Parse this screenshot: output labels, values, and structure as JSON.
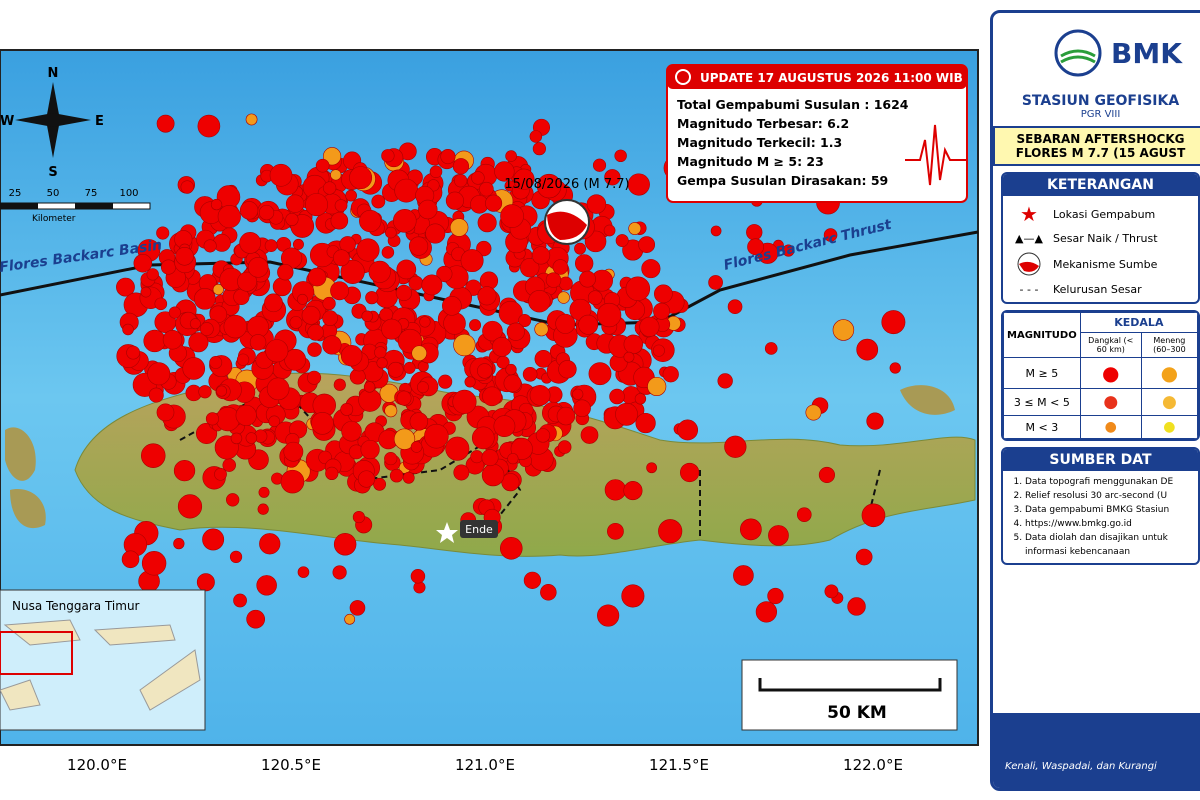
{
  "map": {
    "compass": {
      "n": "N",
      "s": "S",
      "w": "W",
      "e": "E"
    },
    "scale_km": [
      "25",
      "50",
      "75",
      "100"
    ],
    "scale_unit": "Kilometer",
    "basin": "Flores Backarc Basin",
    "thrust": "Flores Backarc Thrust",
    "mainshock": "15/08/2026 (M 7.7)",
    "city": "Ende",
    "inset_title": "Nusa Tenggara Timur",
    "scale_bar": "50 KM",
    "lon_labels": [
      "120.0°E",
      "120.5°E",
      "121.0°E",
      "121.5°E",
      "122.0°E"
    ]
  },
  "update": {
    "title": "UPDATE 17 AUGUSTUS 2026 11:00 WIB",
    "rows": [
      "Total Gempabumi Susulan : 1624",
      "Magnitudo Terbesar: 6.2",
      "Magnitudo Terkecil: 1.3",
      "Magnitudo M ≥ 5: 23",
      "Gempa Susulan Dirasakan: 59"
    ]
  },
  "panel": {
    "logo": "BMK",
    "station": "STASIUN GEOFISIKA",
    "region": "PGR VIII",
    "subtitle1": "SEBARAN AFTERSHOCKG",
    "subtitle2": "FLORES M 7.7 (15 AGUST",
    "legend_title": "KETERANGAN",
    "legend": [
      "Lokasi Gempabum",
      "Sesar Naik / Thrust",
      "Mekanisme Sumbe",
      "Kelurusan Sesar"
    ],
    "table": {
      "h1": "MAGNITUDO",
      "h2": "KEDALA",
      "c1": "Dangkal (< 60 km)",
      "c2": "Meneng (60–300",
      "rows": [
        "M ≥ 5",
        "3 ≤ M < 5",
        "M < 3"
      ]
    },
    "source_title": "SUMBER DAT",
    "sources": [
      "Data topografi menggunakan DE",
      "Relief resolusi 30 arc-second (U",
      "Data gempabumi BMKG Stasiun",
      "https://www.bmkg.go.id",
      "Data diolah dan disajikan untuk",
      "informasi kebencanaan"
    ],
    "footer": "Kenali, Waspadai, dan Kurangi"
  }
}
